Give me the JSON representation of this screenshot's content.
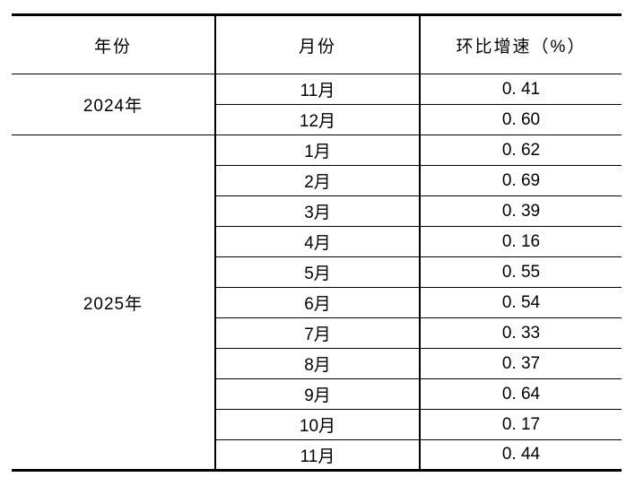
{
  "table": {
    "headers": {
      "year": "年份",
      "month": "月份",
      "rate": "环比增速（%）"
    },
    "groups": [
      {
        "year": "2024年",
        "rows": [
          {
            "month": "11月",
            "value": "0. 41"
          },
          {
            "month": "12月",
            "value": "0. 60"
          }
        ]
      },
      {
        "year": "2025年",
        "rows": [
          {
            "month": "1月",
            "value": "0. 62"
          },
          {
            "month": "2月",
            "value": "0. 69"
          },
          {
            "month": "3月",
            "value": "0. 39"
          },
          {
            "month": "4月",
            "value": "0. 16"
          },
          {
            "month": "5月",
            "value": "0. 55"
          },
          {
            "month": "6月",
            "value": "0. 54"
          },
          {
            "month": "7月",
            "value": "0. 33"
          },
          {
            "month": "8月",
            "value": "0. 37"
          },
          {
            "month": "9月",
            "value": "0. 64"
          },
          {
            "month": "10月",
            "value": "0. 17"
          },
          {
            "month": "11月",
            "value": "0. 44"
          }
        ]
      }
    ],
    "colors": {
      "border": "#000000",
      "text": "#000000",
      "background": "#ffffff"
    }
  }
}
